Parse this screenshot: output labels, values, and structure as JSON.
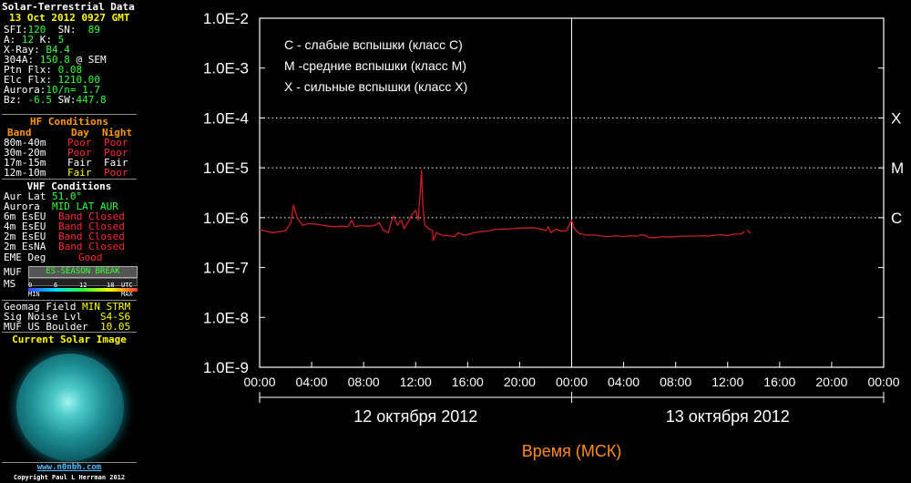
{
  "widget": {
    "title": "Solar-Terrestrial Data",
    "date": "13 Oct 2012 0927 GMT",
    "sfi_label": "SFI:",
    "sfi": "120",
    "sn_label": "SN:",
    "sn": "89",
    "a_label": "A:",
    "a": "12",
    "k_label": "K:",
    "k": "5",
    "xray_label": "X-Ray:",
    "xray": "B4.4",
    "f304_label": "304A:",
    "f304": "150.8",
    "f304_suffix": "@ SEM",
    "ptn_label": "Ptn Flx:",
    "ptn": "0.08",
    "elc_label": "Elc Flx:",
    "elc": "1210.00",
    "aurora_label": "Aurora:",
    "aurora": "10/n=",
    "aurora_n": "1.7",
    "bz_label": "Bz:",
    "bz": "-6.5",
    "sw_label": "SW:",
    "sw": "447.8",
    "hf_title": "HF Conditions",
    "hf_headers": [
      "Band",
      "Day",
      "Night"
    ],
    "hf_rows": [
      {
        "band": "80m-40m",
        "day": "Poor",
        "night": "Poor"
      },
      {
        "band": "30m-20m",
        "day": "Poor",
        "night": "Poor"
      },
      {
        "band": "17m-15m",
        "day": "Fair",
        "night": "Fair"
      },
      {
        "band": "12m-10m",
        "day": "Fair",
        "night": "Poor"
      }
    ],
    "vhf_title": "VHF Conditions",
    "aur_lat_label": "Aur Lat",
    "aur_lat": "51.0°",
    "aurora2_label": "Aurora",
    "aurora2": "MID LAT AUR",
    "vhf_rows": [
      {
        "band": "6m EsEU",
        "status": "Band Closed"
      },
      {
        "band": "4m EsEU",
        "status": "Band Closed"
      },
      {
        "band": "2m EsEU",
        "status": "Band Closed"
      },
      {
        "band": "2m EsNA",
        "status": "Band Closed"
      }
    ],
    "eme_label": "EME Deg",
    "eme": "Good",
    "muf_label": "MUF",
    "muf": "ES-SEASON BREAK",
    "ms_label": "MS",
    "scale_ticks": [
      "0",
      "6",
      "12",
      "18",
      "UTC"
    ],
    "scale_min": "MIN",
    "scale_max": "MAX",
    "geomag_label": "Geomag Field",
    "geomag": "MIN STRM",
    "signoise_label": "Sig Noise Lvl",
    "signoise": "S4-S6",
    "mufus_label": "MUF US Boulder",
    "mufus": "10.05",
    "image_title": "Current Solar Image",
    "url": "www.n0nbh.com",
    "copyright": "Copyright Paul L Herrman 2012"
  },
  "chart_data": {
    "type": "line",
    "ylabels": [
      "1.0E-2",
      "1.0E-3",
      "1.0E-4",
      "1.0E-5",
      "1.0E-6",
      "1.0E-7",
      "1.0E-8",
      "1.0E-9"
    ],
    "ylim": [
      -9,
      -2
    ],
    "yscale": "log",
    "xlabels": [
      "00:00",
      "04:00",
      "08:00",
      "12:00",
      "16:00",
      "20:00",
      "00:00",
      "04:00",
      "08:00",
      "12:00",
      "16:00",
      "20:00",
      "00:00"
    ],
    "xlim": [
      0,
      48
    ],
    "xlabel": "Время (МСК)",
    "days": [
      {
        "label": "12 октября 2012",
        "start": 0,
        "end": 24
      },
      {
        "label": "13 октября 2012",
        "start": 24,
        "end": 48
      }
    ],
    "legend": [
      "С - слабые вспышки (класс С)",
      "М -средние вспышки (класс М)",
      "Х - сильные вспышки (класс Х)"
    ],
    "thresholds": [
      {
        "label": "X",
        "value": -4
      },
      {
        "label": "M",
        "value": -5
      },
      {
        "label": "C",
        "value": -6
      }
    ],
    "series": [
      {
        "color": "#cc1f1f",
        "points": [
          [
            0.0,
            -6.24
          ],
          [
            0.5,
            -6.27
          ],
          [
            1.0,
            -6.3
          ],
          [
            1.5,
            -6.28
          ],
          [
            2.0,
            -6.26
          ],
          [
            2.4,
            -6.1
          ],
          [
            2.6,
            -5.75
          ],
          [
            2.9,
            -6.0
          ],
          [
            3.3,
            -6.15
          ],
          [
            3.8,
            -6.12
          ],
          [
            4.3,
            -6.13
          ],
          [
            4.8,
            -6.15
          ],
          [
            5.3,
            -6.17
          ],
          [
            5.8,
            -6.18
          ],
          [
            6.3,
            -6.17
          ],
          [
            6.8,
            -6.18
          ],
          [
            7.1,
            -6.05
          ],
          [
            7.3,
            -6.18
          ],
          [
            7.8,
            -6.16
          ],
          [
            8.3,
            -6.17
          ],
          [
            8.8,
            -6.16
          ],
          [
            9.2,
            -6.1
          ],
          [
            9.5,
            -6.25
          ],
          [
            9.9,
            -6.3
          ],
          [
            10.1,
            -6.1
          ],
          [
            10.3,
            -5.97
          ],
          [
            10.6,
            -6.15
          ],
          [
            10.9,
            -6.05
          ],
          [
            11.1,
            -6.22
          ],
          [
            11.4,
            -6.1
          ],
          [
            11.7,
            -5.95
          ],
          [
            12.0,
            -5.85
          ],
          [
            12.2,
            -6.05
          ],
          [
            12.35,
            -5.5
          ],
          [
            12.45,
            -5.05
          ],
          [
            12.55,
            -5.75
          ],
          [
            12.7,
            -6.15
          ],
          [
            13.0,
            -6.22
          ],
          [
            13.3,
            -6.26
          ],
          [
            13.35,
            -6.46
          ],
          [
            13.6,
            -6.3
          ],
          [
            14.0,
            -6.35
          ],
          [
            14.5,
            -6.36
          ],
          [
            15.0,
            -6.38
          ],
          [
            15.3,
            -6.3
          ],
          [
            15.7,
            -6.35
          ],
          [
            16.0,
            -6.34
          ],
          [
            16.5,
            -6.3
          ],
          [
            17.0,
            -6.28
          ],
          [
            17.5,
            -6.27
          ],
          [
            18.0,
            -6.24
          ],
          [
            18.5,
            -6.23
          ],
          [
            19.0,
            -6.23
          ],
          [
            19.5,
            -6.22
          ],
          [
            20.0,
            -6.21
          ],
          [
            20.5,
            -6.21
          ],
          [
            21.0,
            -6.2
          ],
          [
            21.5,
            -6.22
          ],
          [
            22.0,
            -6.26
          ],
          [
            22.2,
            -6.18
          ],
          [
            22.4,
            -6.3
          ],
          [
            22.8,
            -6.23
          ],
          [
            23.2,
            -6.27
          ],
          [
            23.6,
            -6.26
          ],
          [
            24.0,
            -6.05
          ],
          [
            24.2,
            -6.22
          ],
          [
            24.6,
            -6.32
          ],
          [
            25.2,
            -6.35
          ],
          [
            25.8,
            -6.35
          ],
          [
            26.3,
            -6.37
          ],
          [
            26.9,
            -6.38
          ],
          [
            27.4,
            -6.36
          ],
          [
            28.0,
            -6.38
          ],
          [
            28.5,
            -6.36
          ],
          [
            29.0,
            -6.37
          ],
          [
            29.5,
            -6.34
          ],
          [
            30.0,
            -6.4
          ],
          [
            30.5,
            -6.4
          ],
          [
            31.0,
            -6.38
          ],
          [
            31.5,
            -6.39
          ],
          [
            32.0,
            -6.38
          ],
          [
            32.5,
            -6.37
          ],
          [
            33.0,
            -6.37
          ],
          [
            33.5,
            -6.37
          ],
          [
            34.0,
            -6.36
          ],
          [
            34.5,
            -6.37
          ],
          [
            35.0,
            -6.35
          ],
          [
            35.5,
            -6.34
          ],
          [
            36.0,
            -6.36
          ],
          [
            36.5,
            -6.33
          ],
          [
            37.0,
            -6.33
          ],
          [
            37.3,
            -6.28
          ]
        ]
      },
      {
        "color": "#cc1f1f",
        "points": [
          [
            37.5,
            -6.25
          ],
          [
            37.8,
            -6.32
          ]
        ]
      }
    ]
  }
}
